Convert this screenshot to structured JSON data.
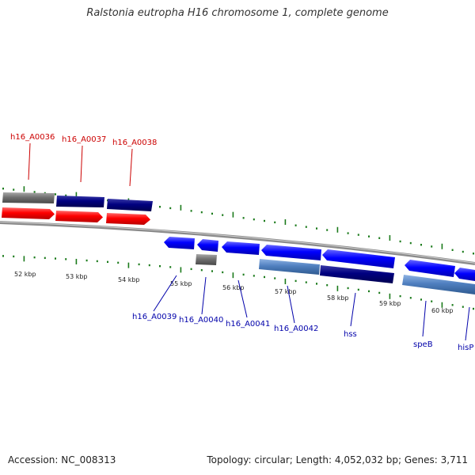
{
  "title": "Ralstonia eutropha H16 chromosome 1, complete genome",
  "footer": {
    "accession": "Accession: NC_008313",
    "stats": "Topology: circular; Length: 4,052,032 bp; Genes: 3,711"
  },
  "colors": {
    "forward_cds": "#ff0000",
    "reverse_cds": "#0000ff",
    "forward_gene": "#000080",
    "reverse_gene": "#000080",
    "hypothetical_gene": "#707070",
    "light_gene": "#4f7fbf",
    "tick": "#1a7a1a",
    "backbone": "#808080",
    "forward_label": "#cc0000",
    "reverse_label": "#0000aa"
  },
  "map": {
    "kbp_labels": [
      "52 kbp",
      "53 kbp",
      "54 kbp",
      "55 kbp",
      "56 kbp",
      "57 kbp",
      "58 kbp",
      "59 kbp",
      "60 kbp"
    ],
    "forward_labels": [
      "h16_A0036",
      "h16_A0037",
      "h16_A0038"
    ],
    "reverse_labels": [
      "h16_A0039",
      "h16_A0040",
      "h16_A0041",
      "h16_A0042",
      "hss",
      "speB",
      "hisP"
    ]
  }
}
